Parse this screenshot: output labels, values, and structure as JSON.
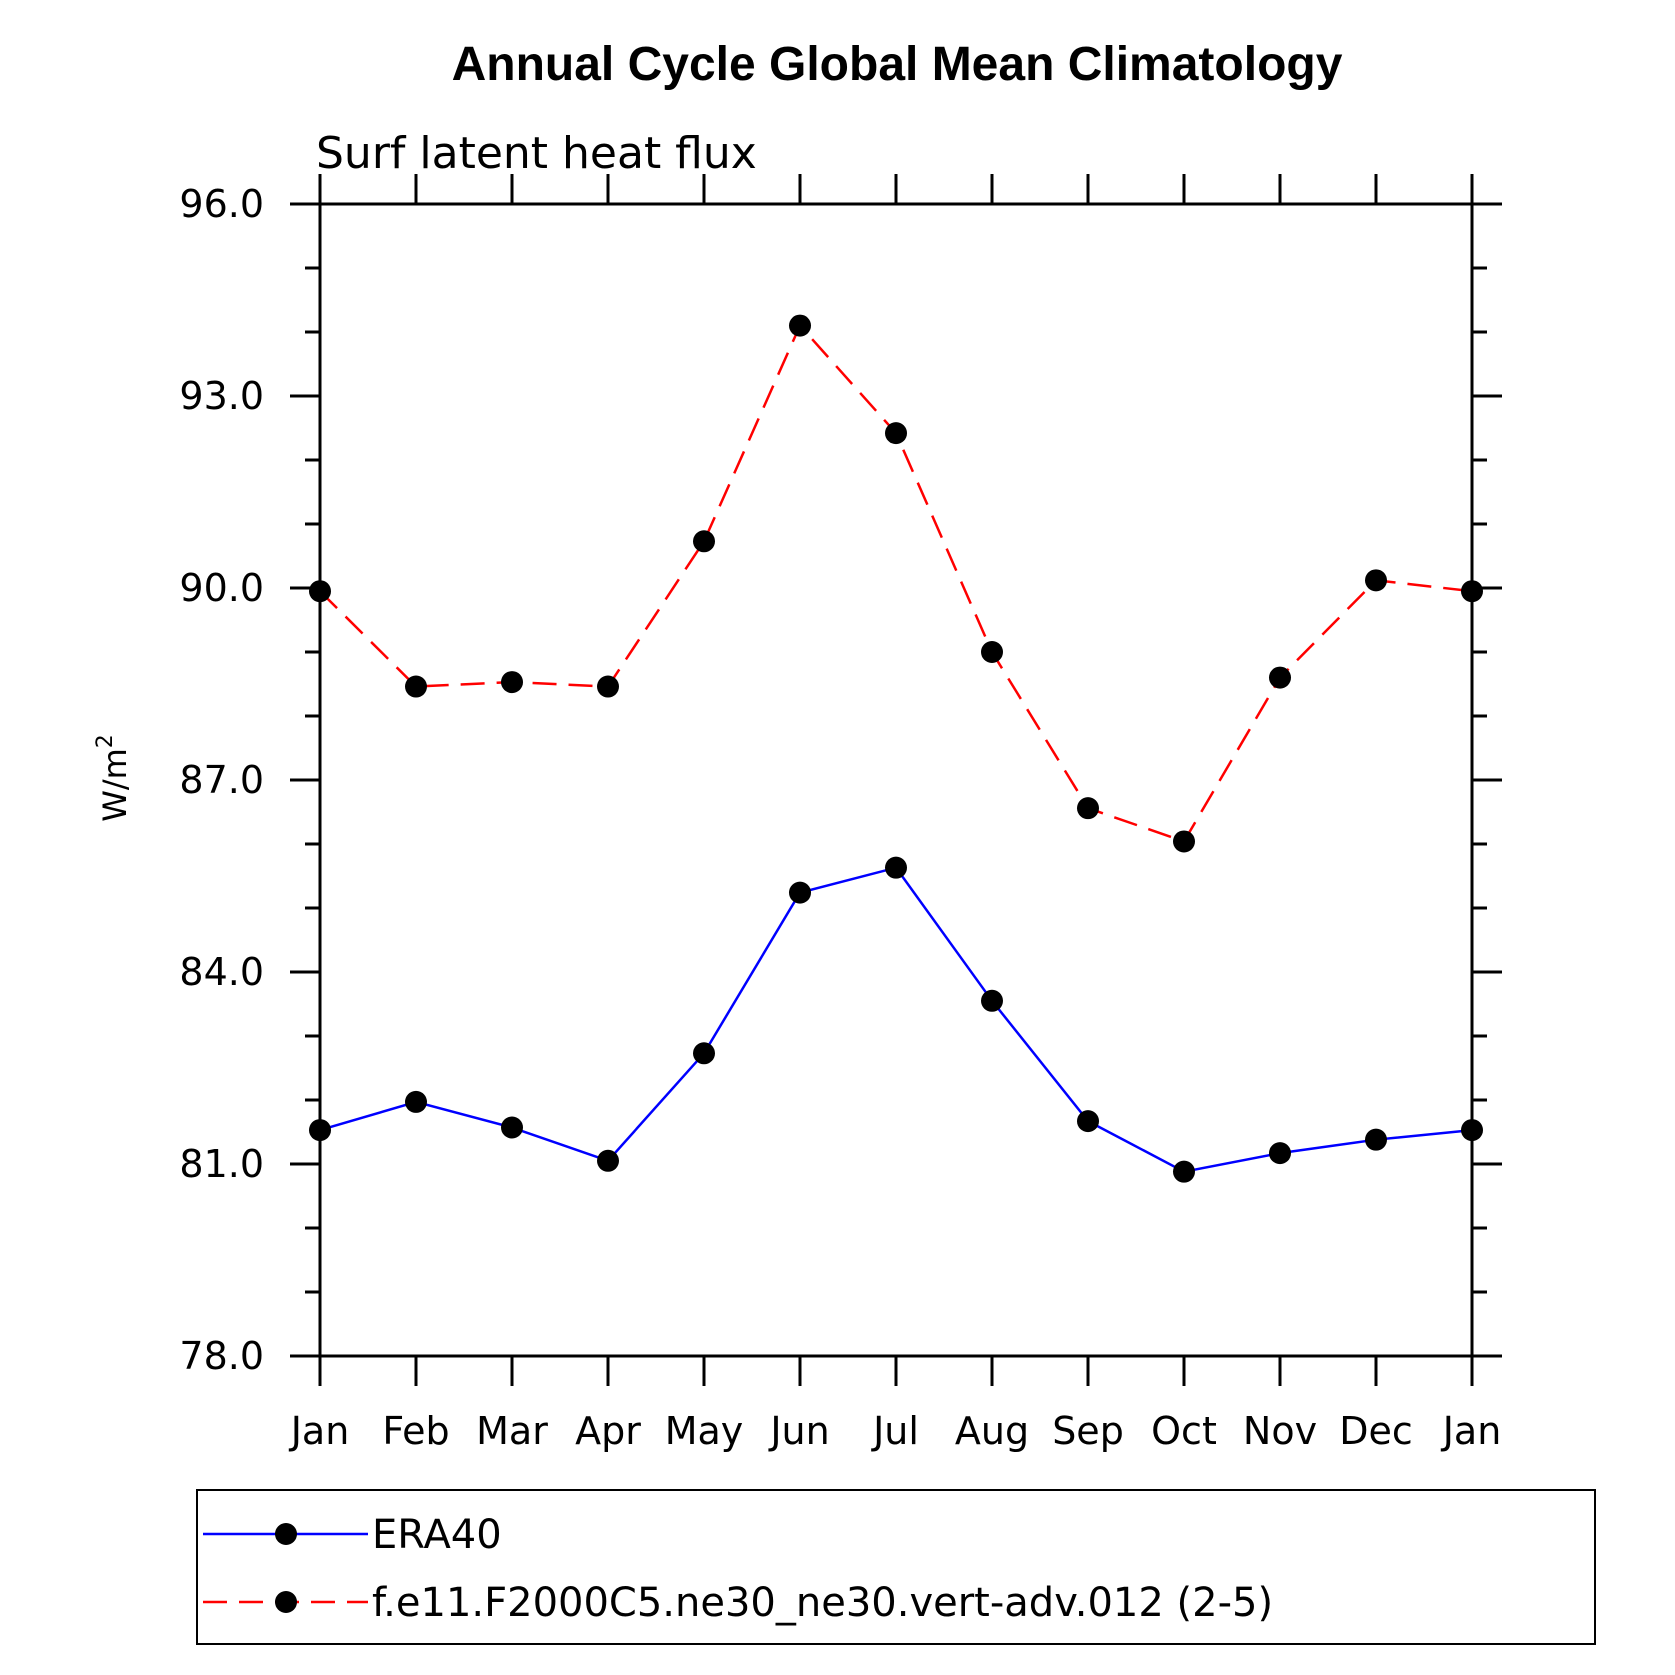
{
  "chart_data": {
    "type": "line",
    "title": "Annual Cycle Global Mean Climatology",
    "subtitle": "Surf latent heat flux",
    "ylabel": "W/m",
    "ylabel_superscript": "2",
    "ylim": [
      78.0,
      96.0
    ],
    "yticks": [
      "78.0",
      "81.0",
      "84.0",
      "87.0",
      "90.0",
      "93.0",
      "96.0"
    ],
    "categories": [
      "Jan",
      "Feb",
      "Mar",
      "Apr",
      "May",
      "Jun",
      "Jul",
      "Aug",
      "Sep",
      "Oct",
      "Nov",
      "Dec",
      "Jan"
    ],
    "legend_position": "bottom",
    "grid": false,
    "series": [
      {
        "name": "ERA40",
        "color": "#0000ff",
        "dash": "solid",
        "values": [
          81.53,
          81.97,
          81.57,
          81.05,
          82.73,
          85.24,
          85.63,
          83.55,
          81.67,
          80.88,
          81.17,
          81.38,
          81.53
        ]
      },
      {
        "name": "f.e11.F2000C5.ne30_ne30.vert-adv.012 (2-5)",
        "color": "#ff0000",
        "dash": "dashed",
        "values": [
          89.95,
          88.46,
          88.53,
          88.46,
          90.73,
          94.1,
          92.42,
          89.0,
          86.56,
          86.04,
          88.6,
          90.12,
          89.95
        ]
      }
    ]
  }
}
